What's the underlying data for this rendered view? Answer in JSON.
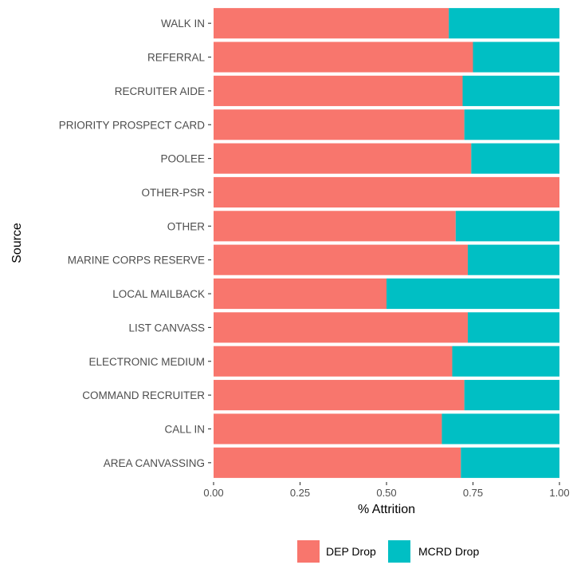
{
  "chart_data": {
    "type": "bar",
    "orientation": "horizontal",
    "stacked": true,
    "xlabel": "% Attrition",
    "ylabel": "Source",
    "xlim": [
      0,
      1
    ],
    "xticks": [
      "0.00",
      "0.25",
      "0.50",
      "0.75",
      "1.00"
    ],
    "grid": false,
    "legend_position": "bottom",
    "categories": [
      "WALK IN",
      "REFERRAL",
      "RECRUITER AIDE",
      "PRIORITY PROSPECT CARD",
      "POOLEE",
      "OTHER-PSR",
      "OTHER",
      "MARINE CORPS RESERVE",
      "LOCAL MAILBACK",
      "LIST CANVASS",
      "ELECTRONIC MEDIUM",
      "COMMAND RECRUITER",
      "CALL IN",
      "AREA CANVASSING"
    ],
    "series": [
      {
        "name": "DEP Drop",
        "color": "#F8766D",
        "values": [
          0.68,
          0.75,
          0.72,
          0.725,
          0.745,
          1.0,
          0.7,
          0.735,
          0.5,
          0.735,
          0.69,
          0.725,
          0.66,
          0.715
        ]
      },
      {
        "name": "MCRD Drop",
        "color": "#00BFC4",
        "values": [
          0.32,
          0.25,
          0.28,
          0.275,
          0.255,
          0.0,
          0.3,
          0.265,
          0.5,
          0.265,
          0.31,
          0.275,
          0.34,
          0.285
        ]
      }
    ]
  }
}
